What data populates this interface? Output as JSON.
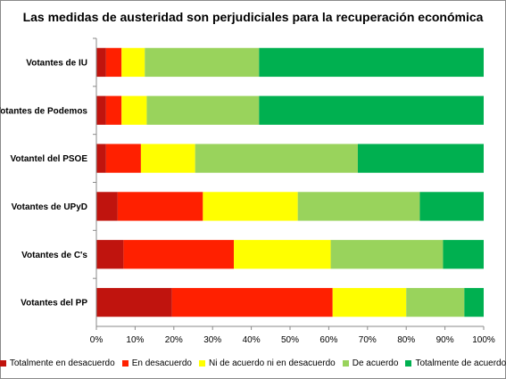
{
  "chart_data": {
    "type": "bar",
    "orientation": "horizontal",
    "stacked": "percent",
    "title": "Las medidas de austeridad son perjudiciales para la recuperación económica",
    "categories": [
      "Votantes de IU",
      "Votantes de Podemos",
      "Votantel del PSOE",
      "Votantes de UPyD",
      "Votantes de C's",
      "Votantes del PP"
    ],
    "xlim": [
      0,
      100
    ],
    "x_ticks": [
      "0%",
      "10%",
      "20%",
      "30%",
      "40%",
      "50%",
      "60%",
      "70%",
      "80%",
      "90%",
      "100%"
    ],
    "grid": false,
    "legend_position": "bottom",
    "series": [
      {
        "name": "Totalmente en desacuerdo",
        "color": "#c0140e",
        "values": [
          2.5,
          2.5,
          2.5,
          5.5,
          7,
          19.5
        ]
      },
      {
        "name": "En desacuerdo",
        "color": "#ff2000",
        "values": [
          4,
          4,
          9,
          22,
          28.5,
          41.5
        ]
      },
      {
        "name": "Ni de acuerdo ni en desacuerdo",
        "color": "#ffff00",
        "values": [
          6,
          6.5,
          14,
          24.5,
          25,
          19
        ]
      },
      {
        "name": "De acuerdo",
        "color": "#99d35c",
        "values": [
          29.5,
          29,
          42,
          31.5,
          29,
          15
        ]
      },
      {
        "name": "Totalmente de acuerdo",
        "color": "#00b050",
        "values": [
          58,
          58,
          32.5,
          16.5,
          10.5,
          5
        ]
      }
    ]
  }
}
